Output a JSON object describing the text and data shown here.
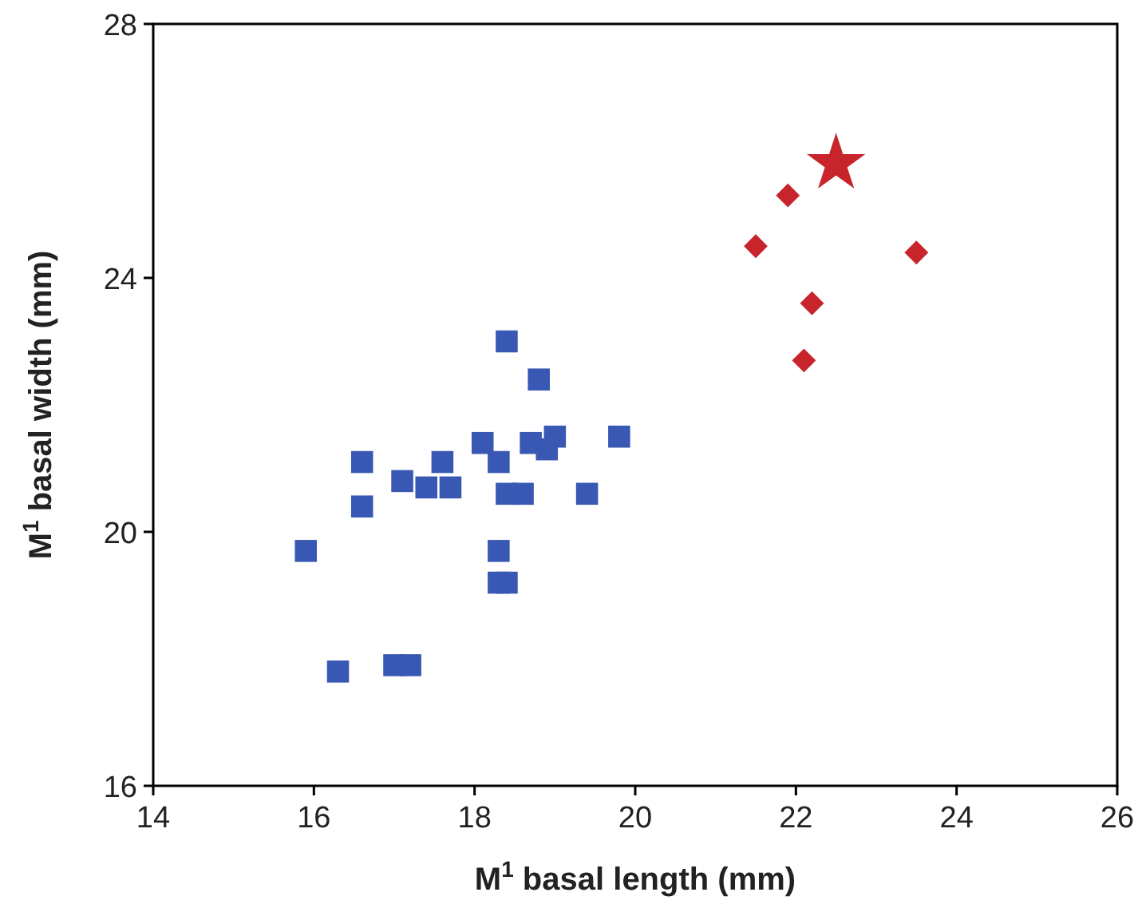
{
  "chart_data": {
    "type": "scatter",
    "xlabel": "M$^{1}$ basal length (mm)",
    "ylabel": "M$^{1}$ basal width (mm)",
    "xlim": [
      14,
      26
    ],
    "xticks": [
      14,
      16,
      18,
      20,
      22,
      24,
      26
    ],
    "ylim": [
      16,
      28
    ],
    "yticks": [
      16,
      20,
      24,
      28
    ],
    "grid": false,
    "series": [
      {
        "color": "#3858b4",
        "marker": "square",
        "x": [
          15.9,
          16.3,
          16.6,
          16.6,
          17.1,
          17.4,
          17.7,
          17.6,
          17.0,
          17.2,
          18.1,
          18.3,
          18.4,
          18.8,
          18.7,
          19.0,
          18.9,
          19.8,
          19.4,
          18.4,
          18.6,
          18.3,
          18.3,
          18.4
        ],
        "values": [
          19.7,
          17.8,
          21.1,
          20.4,
          20.8,
          20.7,
          20.7,
          21.1,
          17.9,
          17.9,
          21.4,
          21.1,
          23.0,
          22.4,
          21.4,
          21.5,
          21.3,
          21.5,
          20.6,
          20.6,
          20.6,
          19.7,
          19.2,
          19.2
        ]
      },
      {
        "color": "#c8242b",
        "marker": "diamond",
        "x": [
          21.5,
          21.9,
          23.5,
          22.2,
          22.1
        ],
        "values": [
          24.5,
          25.3,
          24.4,
          23.6,
          22.7
        ]
      },
      {
        "color": "#c8242b",
        "marker": "star",
        "x": [
          22.5
        ],
        "values": [
          25.8
        ]
      }
    ]
  }
}
